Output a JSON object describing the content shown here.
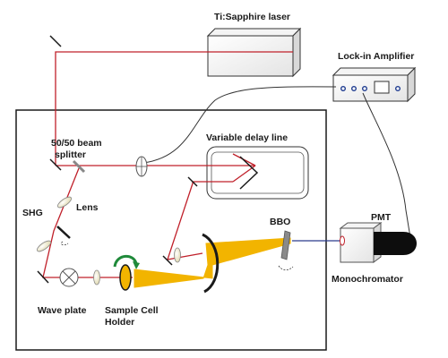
{
  "labels": {
    "laser": "Ti:Sapphire laser",
    "lockin": "Lock-in Amplifier",
    "delay_line": "Variable delay line",
    "beam_splitter_line1": "50/50 beam",
    "beam_splitter_line2": "splitter",
    "shg": "SHG",
    "lens": "Lens",
    "bbo": "BBO",
    "pmt": "PMT",
    "monochromator": "Monochromator",
    "wave_plate": "Wave plate",
    "sample_holder_line1": "Sample Cell",
    "sample_holder_line2": "Holder"
  },
  "colors": {
    "fundamental_beam": "#c0202a",
    "shg_beam": "#f2b400",
    "signal_beam": "#2b3a8c",
    "rotation_arrow": "#1f8a3a",
    "frame": "#1a1a1a"
  }
}
